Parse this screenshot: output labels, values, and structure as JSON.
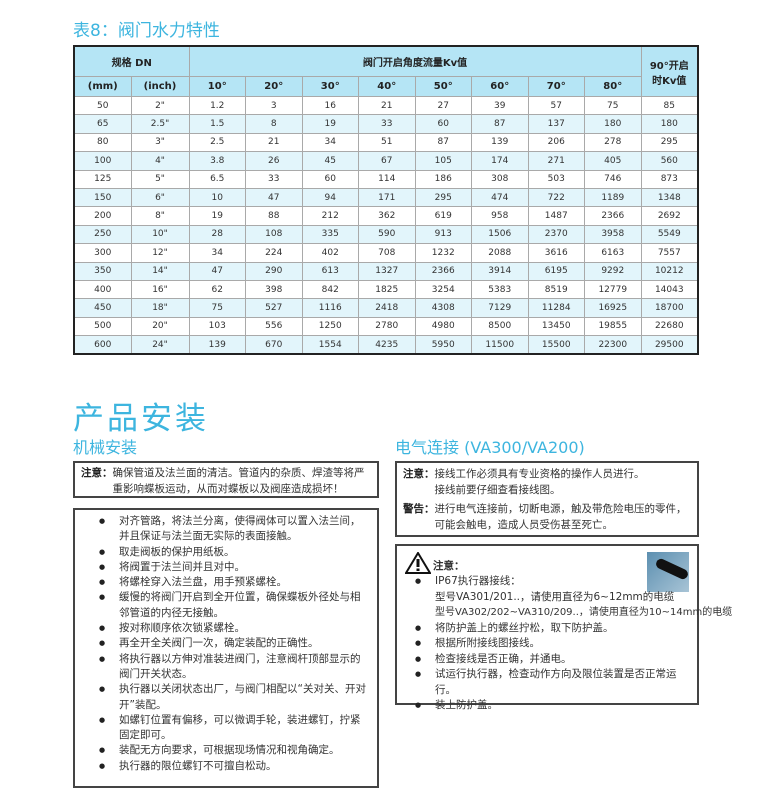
{
  "table": {
    "title": "表8：阀门水力特性",
    "headers": {
      "spec": "规格 DN",
      "kv_group": "阀门开启角度流量Kv值",
      "full_open": "90°开启时Kv值",
      "mm": "(mm)",
      "inch": "(inch)",
      "angles": [
        "10°",
        "20°",
        "30°",
        "40°",
        "50°",
        "60°",
        "70°",
        "80°"
      ]
    },
    "rows": [
      [
        "50",
        "2\"",
        "1.2",
        "3",
        "16",
        "21",
        "27",
        "39",
        "57",
        "75",
        "85"
      ],
      [
        "65",
        "2.5\"",
        "1.5",
        "8",
        "19",
        "33",
        "60",
        "87",
        "137",
        "180",
        "180"
      ],
      [
        "80",
        "3\"",
        "2.5",
        "21",
        "34",
        "51",
        "87",
        "139",
        "206",
        "278",
        "295"
      ],
      [
        "100",
        "4\"",
        "3.8",
        "26",
        "45",
        "67",
        "105",
        "174",
        "271",
        "405",
        "560"
      ],
      [
        "125",
        "5\"",
        "6.5",
        "33",
        "60",
        "114",
        "186",
        "308",
        "503",
        "746",
        "873"
      ],
      [
        "150",
        "6\"",
        "10",
        "47",
        "94",
        "171",
        "295",
        "474",
        "722",
        "1189",
        "1348"
      ],
      [
        "200",
        "8\"",
        "19",
        "88",
        "212",
        "362",
        "619",
        "958",
        "1487",
        "2366",
        "2692"
      ],
      [
        "250",
        "10\"",
        "28",
        "108",
        "335",
        "590",
        "913",
        "1506",
        "2370",
        "3958",
        "5549"
      ],
      [
        "300",
        "12\"",
        "34",
        "224",
        "402",
        "708",
        "1232",
        "2088",
        "3616",
        "6163",
        "7557"
      ],
      [
        "350",
        "14\"",
        "47",
        "290",
        "613",
        "1327",
        "2366",
        "3914",
        "6195",
        "9292",
        "10212"
      ],
      [
        "400",
        "16\"",
        "62",
        "398",
        "842",
        "1825",
        "3254",
        "5383",
        "8519",
        "12779",
        "14043"
      ],
      [
        "450",
        "18\"",
        "75",
        "527",
        "1116",
        "2418",
        "4308",
        "7129",
        "11284",
        "16925",
        "18700"
      ],
      [
        "500",
        "20\"",
        "103",
        "556",
        "1250",
        "2780",
        "4980",
        "8500",
        "13450",
        "19855",
        "22680"
      ],
      [
        "600",
        "24\"",
        "139",
        "670",
        "1554",
        "4235",
        "5950",
        "11500",
        "15500",
        "22300",
        "29500"
      ]
    ]
  },
  "install": {
    "title": "产品安装",
    "mechanical": {
      "heading": "机械安装",
      "note_label": "注意：",
      "note_text": "确保管道及法兰面的清洁。管道内的杂质、焊渣等将严重影响蝶板运动，从而对蝶板以及阀座造成损坏！",
      "steps": [
        "对齐管路，将法兰分离，使得阀体可以置入法兰间，并且保证与法兰面无实际的表面接触。",
        "取走阀板的保护用纸板。",
        "将阀置于法兰间并且对中。",
        "将螺栓穿入法兰盘，用手预紧螺栓。",
        "缓慢的将阀门开启到全开位置，确保蝶板外径处与相邻管道的内径无接触。",
        "按对称顺序依次锁紧螺栓。",
        "再全开全关阀门一次，确定装配的正确性。",
        "将执行器以方伸对准装进阀门，注意阀杆顶部显示的阀门开关状态。",
        "执行器以关闭状态出厂，与阀门相配以“关对关、开对开”装配。",
        "如螺钉位置有偏移，可以微调手轮，装进螺钉，拧紧固定即可。",
        "装配无方向要求，可根据现场情况和视角确定。",
        "执行器的限位螺钉不可擅自松动。"
      ]
    },
    "electrical": {
      "heading": "电气连接 (VA300/VA200)",
      "note_label": "注意：",
      "note_lines": [
        "接线工作必须具有专业资格的操作人员进行。",
        "接线前要仔细查看接线图。"
      ],
      "warning_label": "警告：",
      "warning_text": "进行电气连接前，切断电源，触及带危险电压的零件，可能会触电，造成人员受伤甚至死亡。",
      "caution_label": "注意：",
      "ip67": {
        "title": "IP67执行器接线：",
        "lines": [
          "型号VA301/201..，请使用直径为6~12mm的电缆",
          "型号VA302/202~VA310/209..，请使用直径为10~14mm的电缆"
        ]
      },
      "steps": [
        "将防护盖上的螺丝拧松，取下防护盖。",
        "根据所附接线图接线。",
        "检查接线是否正确，并通电。",
        "试运行执行器，检查动作方向及限位装置是否正常运行。",
        "装上防护盖。"
      ]
    }
  },
  "colors": {
    "accent": "#3db5df",
    "header_bg": "#b5e5f5",
    "row_alt": "#e2f5fb"
  }
}
